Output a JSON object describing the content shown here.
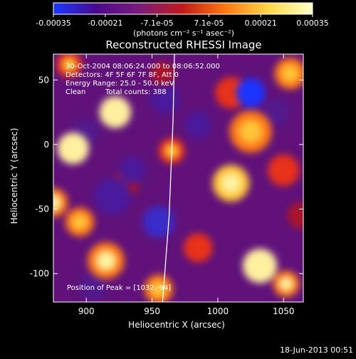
{
  "colorbar": {
    "ticks": [
      "-0.00035",
      "-0.00021",
      "-7.1e-05",
      "7.1e-05",
      "0.00021",
      "0.00035"
    ],
    "units": "(photons cm⁻² s⁻¹ asec⁻²)",
    "range": [
      -0.00035,
      0.00035
    ],
    "colors": [
      "#1838ff",
      "#4a0a8c",
      "#7a1d7a",
      "#c21a1a",
      "#ff7a10",
      "#ffd84a",
      "#ffffc8"
    ]
  },
  "info": {
    "time": "30-Oct-2004 08:06:24.000 to 08:06:52.000",
    "detectors": "Detectors: 4F 5F 6F 7F 8F, Att 0",
    "energy": "Energy Range: 25.0 - 50.0 keV",
    "clean": "Clean",
    "counts": "Total counts: 388"
  },
  "footer_date": "18-Jun-2013 00:51",
  "chart_data": {
    "type": "heatmap",
    "title": "Reconstructed RHESSI Image",
    "xlabel": "Heliocentric X (arcsec)",
    "ylabel": "Heliocentric Y (arcsec)",
    "xlim": [
      875,
      1065
    ],
    "ylim": [
      -122,
      70
    ],
    "xticks": [
      900,
      950,
      1000,
      1050
    ],
    "yticks": [
      50,
      0,
      -50,
      -100
    ],
    "peak_label": "Position of Peak = [1032,-94]",
    "peak": [
      1032,
      -94
    ],
    "limb_x": [
      [
        -122,
        958
      ],
      [
        -55,
        963
      ],
      [
        20,
        966
      ],
      [
        70,
        967
      ]
    ],
    "blobs": [
      {
        "x": 1032,
        "y": -94,
        "v": 1.0,
        "r": 13
      },
      {
        "x": 1052,
        "y": -108,
        "v": 0.65,
        "r": 10
      },
      {
        "x": 890,
        "y": -3,
        "v": 0.95,
        "r": 12
      },
      {
        "x": 922,
        "y": 25,
        "v": 0.9,
        "r": 12
      },
      {
        "x": 887,
        "y": 62,
        "v": 0.55,
        "r": 10
      },
      {
        "x": 875,
        "y": -45,
        "v": 0.7,
        "r": 11
      },
      {
        "x": 895,
        "y": -60,
        "v": 0.6,
        "r": 11
      },
      {
        "x": 915,
        "y": -90,
        "v": 0.7,
        "r": 14
      },
      {
        "x": 955,
        "y": -112,
        "v": 0.6,
        "r": 11
      },
      {
        "x": 1055,
        "y": 55,
        "v": 0.6,
        "r": 12
      },
      {
        "x": 1010,
        "y": -30,
        "v": 0.75,
        "r": 14
      },
      {
        "x": 1025,
        "y": 10,
        "v": 0.6,
        "r": 16
      },
      {
        "x": 1050,
        "y": -20,
        "v": 0.45,
        "r": 12
      },
      {
        "x": 1010,
        "y": 40,
        "v": 0.45,
        "r": 12
      },
      {
        "x": 985,
        "y": -80,
        "v": 0.5,
        "r": 11
      },
      {
        "x": 958,
        "y": 55,
        "v": 0.35,
        "r": 9
      },
      {
        "x": 965,
        "y": -5,
        "v": 0.55,
        "r": 10
      },
      {
        "x": 930,
        "y": -30,
        "v": 0.35,
        "r": 10
      },
      {
        "x": 1063,
        "y": -55,
        "v": 0.4,
        "r": 10
      },
      {
        "x": 1025,
        "y": 40,
        "v": -0.8,
        "r": 11
      },
      {
        "x": 960,
        "y": 35,
        "v": -0.45,
        "r": 11
      },
      {
        "x": 920,
        "y": -40,
        "v": -0.5,
        "r": 14
      },
      {
        "x": 935,
        "y": -20,
        "v": -0.4,
        "r": 10
      },
      {
        "x": 985,
        "y": 15,
        "v": -0.45,
        "r": 10
      },
      {
        "x": 900,
        "y": 10,
        "v": -0.3,
        "r": 10
      },
      {
        "x": 955,
        "y": -60,
        "v": -0.55,
        "r": 12
      },
      {
        "x": 905,
        "y": -110,
        "v": -0.35,
        "r": 10
      },
      {
        "x": 1045,
        "y": 25,
        "v": -0.3,
        "r": 10
      }
    ]
  }
}
